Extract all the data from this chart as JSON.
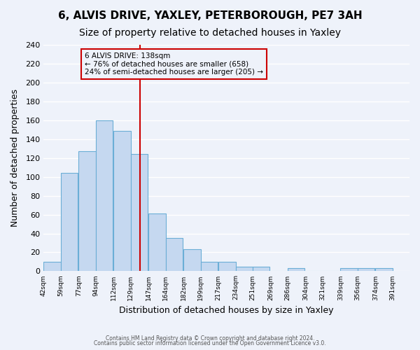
{
  "title": "6, ALVIS DRIVE, YAXLEY, PETERBOROUGH, PE7 3AH",
  "subtitle": "Size of property relative to detached houses in Yaxley",
  "xlabel": "Distribution of detached houses by size in Yaxley",
  "ylabel": "Number of detached properties",
  "bar_left_edges": [
    42,
    59,
    77,
    94,
    112,
    129,
    147,
    164,
    182,
    199,
    217,
    234,
    251,
    269,
    286,
    304,
    321,
    339,
    356,
    374
  ],
  "bar_heights": [
    10,
    104,
    127,
    160,
    149,
    124,
    61,
    35,
    23,
    10,
    10,
    5,
    5,
    0,
    3,
    0,
    0,
    3,
    3,
    3
  ],
  "bin_width": 17,
  "xlim_left": 42,
  "xlim_right": 408,
  "ylim_top": 240,
  "yticks": [
    0,
    20,
    40,
    60,
    80,
    100,
    120,
    140,
    160,
    180,
    200,
    220,
    240
  ],
  "xtick_labels": [
    "42sqm",
    "59sqm",
    "77sqm",
    "94sqm",
    "112sqm",
    "129sqm",
    "147sqm",
    "164sqm",
    "182sqm",
    "199sqm",
    "217sqm",
    "234sqm",
    "251sqm",
    "269sqm",
    "286sqm",
    "304sqm",
    "321sqm",
    "339sqm",
    "356sqm",
    "374sqm",
    "391sqm"
  ],
  "bar_color": "#c5d8f0",
  "bar_edge_color": "#6baed6",
  "marker_x": 138,
  "marker_line_color": "#cc0000",
  "annotation_box_text": "6 ALVIS DRIVE: 138sqm\n← 76% of detached houses are smaller (658)\n24% of semi-detached houses are larger (205) →",
  "annotation_box_edge_color": "#cc0000",
  "footer_line1": "Contains HM Land Registry data © Crown copyright and database right 2024.",
  "footer_line2": "Contains public sector information licensed under the Open Government Licence v3.0.",
  "background_color": "#eef2fa",
  "grid_color": "#ffffff",
  "title_fontsize": 11,
  "subtitle_fontsize": 10,
  "xlabel_fontsize": 9,
  "ylabel_fontsize": 9
}
